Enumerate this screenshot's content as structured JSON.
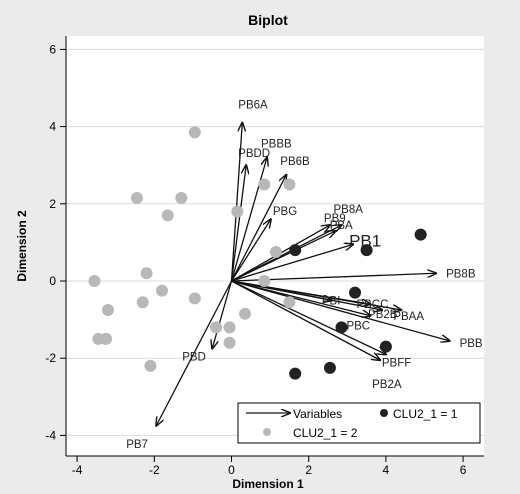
{
  "chart_data": {
    "type": "scatter",
    "title": "Biplot",
    "xlabel": "Dimension 1",
    "ylabel": "Dimension 2",
    "xlim": [
      -4.4,
      6.6
    ],
    "ylim": [
      -4.4,
      6.4
    ],
    "xticks": [
      "-4",
      "-2",
      "0",
      "2",
      "4",
      "6"
    ],
    "yticks": [
      "-4",
      "-2",
      "0",
      "2",
      "4",
      "6"
    ],
    "grid": "horizontal",
    "colors": {
      "background": "#ebebeb",
      "plot_area": "#ffffff",
      "cluster1": "#222222",
      "cluster2": "#b8b8b8",
      "arrow": "#111111"
    },
    "legend": {
      "position": "bottom-right",
      "items": [
        {
          "label": "Variables",
          "symbol": "arrow"
        },
        {
          "label": "CLU2_1 = 1",
          "symbol": "dark-dot"
        },
        {
          "label": "CLU2_1 = 2",
          "symbol": "light-dot"
        }
      ]
    },
    "variables": [
      {
        "name": "PB6A",
        "x": 0.28,
        "y": 4.1
      },
      {
        "name": "PBBB",
        "x": 0.92,
        "y": 3.2
      },
      {
        "name": "PBDD",
        "x": 0.38,
        "y": 3.0
      },
      {
        "name": "PB6B",
        "x": 1.42,
        "y": 2.75
      },
      {
        "name": "PBG",
        "x": 1.02,
        "y": 1.6
      },
      {
        "name": "PB8A",
        "x": 2.85,
        "y": 1.45
      },
      {
        "name": "PBA",
        "x": 2.7,
        "y": 1.3
      },
      {
        "name": "PB9",
        "x": 2.55,
        "y": 1.45
      },
      {
        "name": "PB1",
        "x": 3.15,
        "y": 0.95
      },
      {
        "name": "PB8B",
        "x": 5.3,
        "y": 0.2
      },
      {
        "name": "PBI",
        "x": 2.6,
        "y": -0.5
      },
      {
        "name": "PBCC",
        "x": 3.6,
        "y": -0.6
      },
      {
        "name": "PB2B",
        "x": 3.9,
        "y": -0.75
      },
      {
        "name": "PBAA",
        "x": 4.4,
        "y": -0.75
      },
      {
        "name": "PBC",
        "x": 3.6,
        "y": -0.9
      },
      {
        "name": "PBB",
        "x": 5.65,
        "y": -1.55
      },
      {
        "name": "PBFF",
        "x": 4.0,
        "y": -1.9
      },
      {
        "name": "PB2A",
        "x": 3.85,
        "y": -2.05
      },
      {
        "name": "PBD",
        "x": -0.5,
        "y": -1.75
      },
      {
        "name": "PB7",
        "x": -1.95,
        "y": -3.75
      }
    ],
    "points": [
      {
        "cluster": 1,
        "x": 4.9,
        "y": 1.2
      },
      {
        "cluster": 1,
        "x": 3.5,
        "y": 0.8
      },
      {
        "cluster": 1,
        "x": 1.65,
        "y": 0.8
      },
      {
        "cluster": 1,
        "x": 3.2,
        "y": -0.3
      },
      {
        "cluster": 1,
        "x": 2.85,
        "y": -1.2
      },
      {
        "cluster": 1,
        "x": 4.0,
        "y": -1.7
      },
      {
        "cluster": 1,
        "x": 2.55,
        "y": -2.25
      },
      {
        "cluster": 1,
        "x": 1.65,
        "y": -2.4
      },
      {
        "cluster": 2,
        "x": -0.95,
        "y": 3.85
      },
      {
        "cluster": 2,
        "x": 0.85,
        "y": 2.5
      },
      {
        "cluster": 2,
        "x": 1.5,
        "y": 2.5
      },
      {
        "cluster": 2,
        "x": -2.45,
        "y": 2.15
      },
      {
        "cluster": 2,
        "x": -1.3,
        "y": 2.15
      },
      {
        "cluster": 2,
        "x": 0.15,
        "y": 1.8
      },
      {
        "cluster": 2,
        "x": -1.65,
        "y": 1.7
      },
      {
        "cluster": 2,
        "x": 1.15,
        "y": 0.75
      },
      {
        "cluster": 2,
        "x": -2.2,
        "y": 0.2
      },
      {
        "cluster": 2,
        "x": -3.55,
        "y": 0.0
      },
      {
        "cluster": 2,
        "x": 0.85,
        "y": 0.0
      },
      {
        "cluster": 2,
        "x": -1.8,
        "y": -0.25
      },
      {
        "cluster": 2,
        "x": -0.95,
        "y": -0.45
      },
      {
        "cluster": 2,
        "x": -2.3,
        "y": -0.55
      },
      {
        "cluster": 2,
        "x": 1.5,
        "y": -0.55
      },
      {
        "cluster": 2,
        "x": -3.2,
        "y": -0.75
      },
      {
        "cluster": 2,
        "x": 0.35,
        "y": -0.85
      },
      {
        "cluster": 2,
        "x": -0.4,
        "y": -1.2
      },
      {
        "cluster": 2,
        "x": -0.05,
        "y": -1.2
      },
      {
        "cluster": 2,
        "x": -3.45,
        "y": -1.5
      },
      {
        "cluster": 2,
        "x": -3.25,
        "y": -1.5
      },
      {
        "cluster": 2,
        "x": -0.05,
        "y": -1.6
      },
      {
        "cluster": 2,
        "x": -2.1,
        "y": -2.2
      }
    ]
  }
}
